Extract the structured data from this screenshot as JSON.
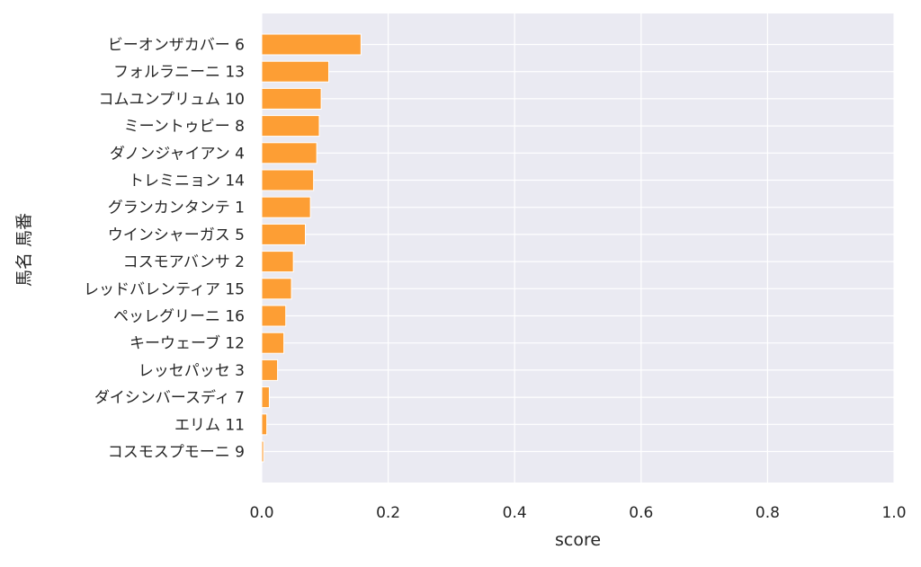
{
  "chart_data": {
    "type": "bar",
    "orientation": "horizontal",
    "xlabel": "score",
    "ylabel": "馬名 馬番",
    "xlim": [
      0.0,
      1.0
    ],
    "xticks": [
      "0.0",
      "0.2",
      "0.4",
      "0.6",
      "0.8",
      "1.0"
    ],
    "grid": true,
    "categories": [
      "ビーオンザカバー 6",
      "フォルラニーニ 13",
      "コムユンプリュム 10",
      "ミーントゥビー 8",
      "ダノンジャイアン 4",
      "トレミニョン 14",
      "グランカンタンテ 1",
      "ウインシャーガス 5",
      "コスモアバンサ 2",
      "レッドバレンティア 15",
      "ペッレグリーニ 16",
      "キーウェーブ 12",
      "レッセパッセ 3",
      "ダイシンバースディ 7",
      "エリム 11",
      "コスモスプモーニ 9"
    ],
    "values": [
      0.157,
      0.106,
      0.094,
      0.091,
      0.087,
      0.082,
      0.077,
      0.069,
      0.05,
      0.047,
      0.038,
      0.035,
      0.025,
      0.012,
      0.008,
      0.003
    ],
    "colors": {
      "bar": "#fd9e34",
      "bar_edge": "#ffffff",
      "plot_bg": "#eaeaf2",
      "grid": "#ffffff"
    }
  }
}
